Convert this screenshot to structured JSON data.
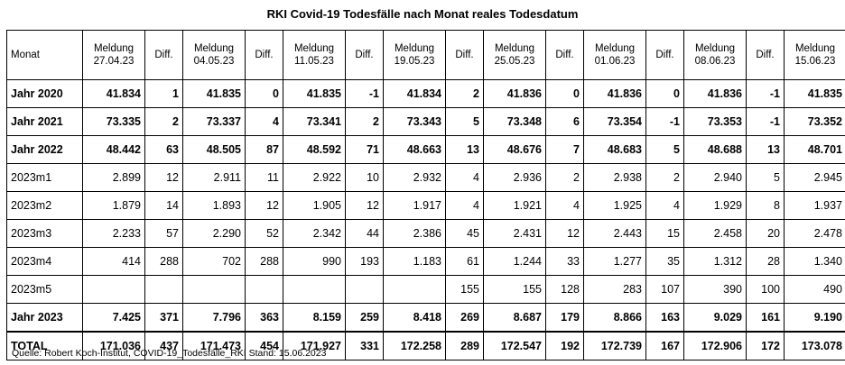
{
  "title": "RKI Covid-19 Todesfälle nach Monat reales Todesdatum",
  "table": {
    "month_header": "Monat",
    "columns": [
      {
        "type": "meldung",
        "line1": "Meldung",
        "line2": "27.04.23"
      },
      {
        "type": "diff",
        "label": "Diff."
      },
      {
        "type": "meldung",
        "line1": "Meldung",
        "line2": "04.05.23"
      },
      {
        "type": "diff",
        "label": "Diff."
      },
      {
        "type": "meldung",
        "line1": "Meldung",
        "line2": "11.05.23"
      },
      {
        "type": "diff",
        "label": "Diff."
      },
      {
        "type": "meldung",
        "line1": "Meldung",
        "line2": "19.05.23"
      },
      {
        "type": "diff",
        "label": "Diff."
      },
      {
        "type": "meldung",
        "line1": "Meldung",
        "line2": "25.05.23"
      },
      {
        "type": "diff",
        "label": "Diff."
      },
      {
        "type": "meldung",
        "line1": "Meldung",
        "line2": "01.06.23"
      },
      {
        "type": "diff",
        "label": "Diff."
      },
      {
        "type": "meldung",
        "line1": "Meldung",
        "line2": "08.06.23"
      },
      {
        "type": "diff",
        "label": "Diff."
      },
      {
        "type": "meldung",
        "line1": "Meldung",
        "line2": "15.06.23"
      }
    ],
    "rows": [
      {
        "label": "Jahr 2020",
        "bold": true,
        "cells": [
          "41.834",
          "1",
          "41.835",
          "0",
          "41.835",
          "-1",
          "41.834",
          "2",
          "41.836",
          "0",
          "41.836",
          "0",
          "41.836",
          "-1",
          "41.835"
        ]
      },
      {
        "label": "Jahr 2021",
        "bold": true,
        "cells": [
          "73.335",
          "2",
          "73.337",
          "4",
          "73.341",
          "2",
          "73.343",
          "5",
          "73.348",
          "6",
          "73.354",
          "-1",
          "73.353",
          "-1",
          "73.352"
        ]
      },
      {
        "label": "Jahr 2022",
        "bold": true,
        "cells": [
          "48.442",
          "63",
          "48.505",
          "87",
          "48.592",
          "71",
          "48.663",
          "13",
          "48.676",
          "7",
          "48.683",
          "5",
          "48.688",
          "13",
          "48.701"
        ]
      },
      {
        "label": "2023m1",
        "bold": false,
        "cells": [
          "2.899",
          "12",
          "2.911",
          "11",
          "2.922",
          "10",
          "2.932",
          "4",
          "2.936",
          "2",
          "2.938",
          "2",
          "2.940",
          "5",
          "2.945"
        ]
      },
      {
        "label": "2023m2",
        "bold": false,
        "cells": [
          "1.879",
          "14",
          "1.893",
          "12",
          "1.905",
          "12",
          "1.917",
          "4",
          "1.921",
          "4",
          "1.925",
          "4",
          "1.929",
          "8",
          "1.937"
        ]
      },
      {
        "label": "2023m3",
        "bold": false,
        "cells": [
          "2.233",
          "57",
          "2.290",
          "52",
          "2.342",
          "44",
          "2.386",
          "45",
          "2.431",
          "12",
          "2.443",
          "15",
          "2.458",
          "20",
          "2.478"
        ]
      },
      {
        "label": "2023m4",
        "bold": false,
        "cells": [
          "414",
          "288",
          "702",
          "288",
          "990",
          "193",
          "1.183",
          "61",
          "1.244",
          "33",
          "1.277",
          "35",
          "1.312",
          "28",
          "1.340"
        ]
      },
      {
        "label": "2023m5",
        "bold": false,
        "cells": [
          "",
          "",
          "",
          "",
          "",
          "",
          "",
          "155",
          "155",
          "128",
          "283",
          "107",
          "390",
          "100",
          "490"
        ]
      },
      {
        "label": "Jahr 2023",
        "bold": true,
        "cells": [
          "7.425",
          "371",
          "7.796",
          "363",
          "8.159",
          "259",
          "8.418",
          "269",
          "8.687",
          "179",
          "8.866",
          "163",
          "9.029",
          "161",
          "9.190"
        ]
      },
      {
        "label": "TOTAL",
        "bold": true,
        "total": true,
        "cells": [
          "171.036",
          "437",
          "171.473",
          "454",
          "171.927",
          "331",
          "172.258",
          "289",
          "172.547",
          "192",
          "172.739",
          "167",
          "172.906",
          "172",
          "173.078"
        ]
      }
    ]
  },
  "source": "Quelle: Robert Koch-Institut, COVID-19_Todesfälle_RKI Stand: 15.06.2023"
}
